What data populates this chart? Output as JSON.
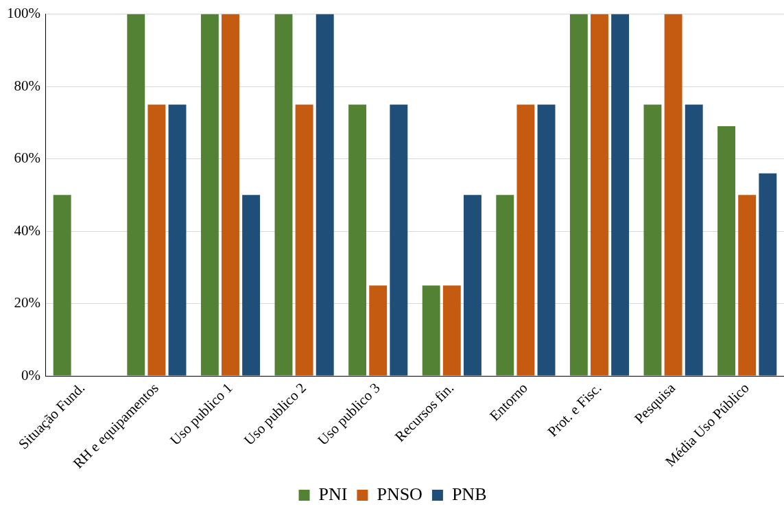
{
  "chart_data": {
    "type": "bar",
    "categories": [
      "Situação Fund.",
      "RH e equipamentos",
      "Uso publico 1",
      "Uso publico 2",
      "Uso publico 3",
      "Recursos fin.",
      "Entorno",
      "Prot. e Fisc.",
      "Pesquisa",
      "Média Uso Público"
    ],
    "series": [
      {
        "name": "PNI",
        "color": "#548235",
        "values": [
          50,
          100,
          100,
          100,
          75,
          25,
          50,
          100,
          75,
          69
        ]
      },
      {
        "name": "PNSO",
        "color": "#c55a11",
        "values": [
          0,
          75,
          100,
          75,
          25,
          25,
          75,
          100,
          100,
          50
        ]
      },
      {
        "name": "PNB",
        "color": "#1f4e79",
        "values": [
          0,
          75,
          50,
          100,
          75,
          50,
          75,
          100,
          75,
          56
        ]
      }
    ],
    "ylim": [
      0,
      100
    ],
    "yticks": [
      {
        "value": 0,
        "label": "0%"
      },
      {
        "value": 20,
        "label": "20%"
      },
      {
        "value": 40,
        "label": "40%"
      },
      {
        "value": 60,
        "label": "60%"
      },
      {
        "value": 80,
        "label": "80%"
      },
      {
        "value": 100,
        "label": "100%"
      }
    ],
    "grid": "y",
    "legend": "bottom"
  }
}
